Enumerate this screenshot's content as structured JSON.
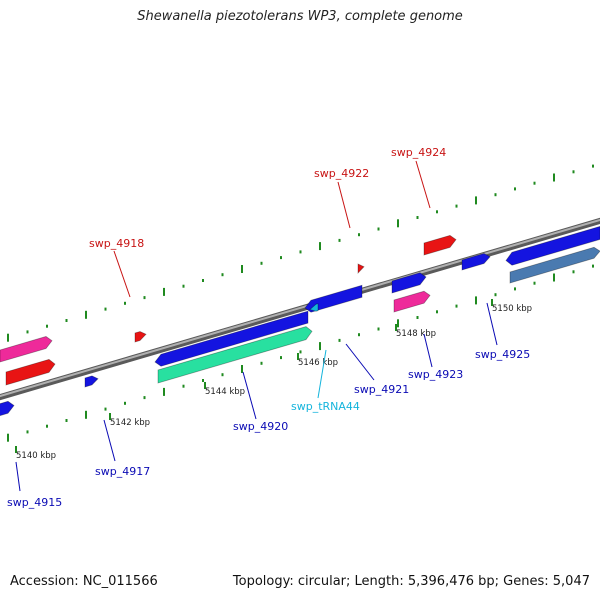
{
  "header": {
    "title": "Shewanella piezotolerans WP3, complete genome"
  },
  "footer": {
    "accession": "Accession: NC_011566",
    "summary": "Topology: circular; Length: 5,396,476 bp; Genes: 5,047"
  },
  "colors": {
    "backbone": "#8a8a8a",
    "tick": "#1f8a1f",
    "forward_label": "#0a0ab4",
    "reverse_label": "#c81414",
    "trna_label": "#14b4dc",
    "blue": "#1414e0",
    "red": "#e81414",
    "pink": "#ee2a9a",
    "green": "#28e0a0",
    "steel": "#4a7ab0"
  },
  "ticks": {
    "labels": [
      "5140 kbp",
      "5142 kbp",
      "5144 kbp",
      "5146 kbp",
      "5148 kbp",
      "5150 kbp"
    ]
  },
  "genes": [
    {
      "name": "swp_4915",
      "color": "blue",
      "label_color": "forward_label"
    },
    {
      "name": "swp_4917",
      "color": "blue",
      "label_color": "forward_label"
    },
    {
      "name": "swp_4918",
      "color": "red",
      "label_color": "reverse_label"
    },
    {
      "name": "swp_4920",
      "color": "blue",
      "label_color": "forward_label"
    },
    {
      "name": "swp_tRNA44",
      "color": "steel",
      "label_color": "trna_label"
    },
    {
      "name": "swp_4921",
      "color": "blue",
      "label_color": "forward_label"
    },
    {
      "name": "swp_4922",
      "color": "red",
      "label_color": "reverse_label"
    },
    {
      "name": "swp_4923",
      "color": "pink",
      "label_color": "forward_label"
    },
    {
      "name": "swp_4924",
      "color": "red",
      "label_color": "reverse_label"
    },
    {
      "name": "swp_4925",
      "color": "blue",
      "label_color": "forward_label"
    }
  ]
}
